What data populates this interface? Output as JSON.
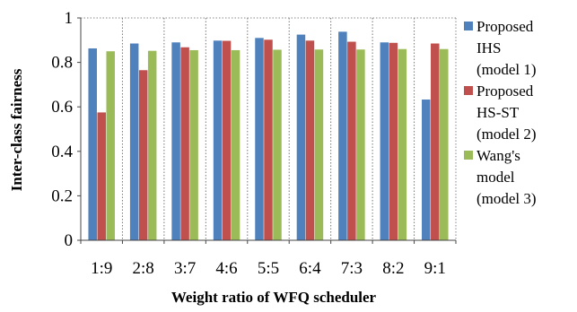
{
  "chart_data": {
    "type": "bar",
    "title": "",
    "xlabel": "Weight ratio of WFQ scheduler",
    "ylabel": "Inter-class fairness",
    "categories": [
      "1:9",
      "2:8",
      "3:7",
      "4:6",
      "5:5",
      "6:4",
      "7:3",
      "8:2",
      "9:1"
    ],
    "ylim": [
      0,
      1
    ],
    "yticks": [
      "0",
      "0.2",
      "0.4",
      "0.6",
      "0.8",
      "1"
    ],
    "ytick_values": [
      0,
      0.2,
      0.4,
      0.6,
      0.8,
      1
    ],
    "grid": "vertical dotted between categories",
    "legend_position": "right",
    "series": [
      {
        "name_lines": [
          "Proposed",
          "IHS",
          "(model 1)"
        ],
        "color": "#4f81bd",
        "values": [
          0.863,
          0.885,
          0.89,
          0.898,
          0.91,
          0.925,
          0.938,
          0.89,
          0.633
        ]
      },
      {
        "name_lines": [
          "Proposed",
          "HS-ST",
          "(model 2)"
        ],
        "color": "#c0504d",
        "values": [
          0.575,
          0.765,
          0.868,
          0.897,
          0.902,
          0.898,
          0.893,
          0.888,
          0.885
        ]
      },
      {
        "name_lines": [
          "Wang's",
          "model",
          "(model 3)"
        ],
        "color": "#9bbb59",
        "values": [
          0.85,
          0.852,
          0.855,
          0.855,
          0.857,
          0.858,
          0.858,
          0.86,
          0.86
        ]
      }
    ]
  }
}
